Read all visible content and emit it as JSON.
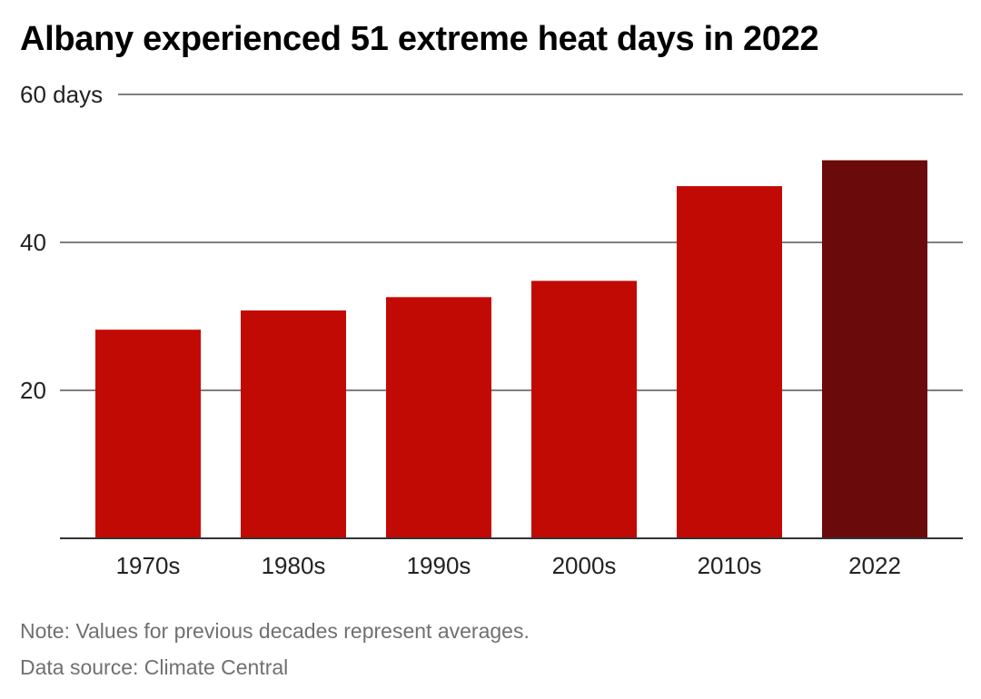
{
  "chart_data": {
    "type": "bar",
    "title": "Albany experienced 51 extreme heat days in 2022",
    "categories": [
      "1970s",
      "1980s",
      "1990s",
      "2000s",
      "2010s",
      "2022"
    ],
    "values": [
      28.2,
      30.8,
      32.6,
      34.8,
      47.6,
      51.1
    ],
    "ylim": [
      0,
      60
    ],
    "yticks": [
      {
        "value": 20,
        "label": "20"
      },
      {
        "value": 40,
        "label": "40"
      },
      {
        "value": 60,
        "label": "60 days"
      }
    ],
    "grid": true,
    "colors": {
      "default": "#c20a05",
      "highlight": "#6b0a0a",
      "highlight_category": "2022"
    }
  },
  "footer": {
    "note": "Note: Values for previous decades represent averages.",
    "source": "Data source: Climate Central"
  }
}
